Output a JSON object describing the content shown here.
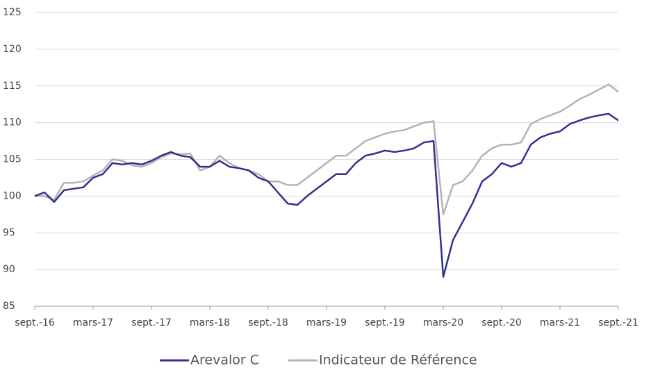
{
  "chart_data": {
    "type": "line",
    "categories": [
      "sept.-16",
      null,
      null,
      null,
      null,
      null,
      "mars-17",
      null,
      null,
      null,
      null,
      null,
      "sept.-17",
      null,
      null,
      null,
      null,
      null,
      "mars-18",
      null,
      null,
      null,
      null,
      null,
      "sept.-18",
      null,
      null,
      null,
      null,
      null,
      "mars-19",
      null,
      null,
      null,
      null,
      null,
      "sept.-19",
      null,
      null,
      null,
      null,
      null,
      "mars-20",
      null,
      null,
      null,
      null,
      null,
      "sept.-20",
      null,
      null,
      null,
      null,
      null,
      "mars-21",
      null,
      null,
      null,
      null,
      null,
      "sept.-21"
    ],
    "series": [
      {
        "name": "Arevalor C",
        "color": "#2e3192",
        "values": [
          100,
          100.5,
          99.2,
          100.8,
          101,
          101.2,
          102.5,
          103,
          104.5,
          104.3,
          104.5,
          104.3,
          104.8,
          105.5,
          106,
          105.5,
          105.3,
          104,
          104,
          104.8,
          104,
          103.8,
          103.5,
          102.5,
          102,
          100.5,
          99,
          98.8,
          100,
          101,
          102,
          103,
          103,
          104.5,
          105.5,
          105.8,
          106.2,
          106,
          106.2,
          106.5,
          107.3,
          107.5,
          89,
          94,
          96.5,
          99,
          102,
          103,
          104.5,
          104,
          104.5,
          107,
          108,
          108.5,
          108.8,
          109.8,
          110.3,
          110.7,
          111,
          111.2,
          110.3
        ]
      },
      {
        "name": "Indicateur de Référence",
        "color": "#b3b3b3",
        "values": [
          100,
          100,
          99.5,
          101.8,
          101.8,
          102,
          102.8,
          103.5,
          105,
          104.8,
          104.2,
          104,
          104.5,
          105.3,
          105.8,
          105.7,
          105.8,
          103.5,
          104,
          105.5,
          104.5,
          103.8,
          103.5,
          103,
          102,
          102,
          101.5,
          101.5,
          102.5,
          103.5,
          104.5,
          105.5,
          105.5,
          106.5,
          107.5,
          108,
          108.5,
          108.8,
          109,
          109.5,
          110,
          110.2,
          97.5,
          101.5,
          102,
          103.5,
          105.5,
          106.5,
          107,
          107,
          107.3,
          109.8,
          110.5,
          111,
          111.5,
          112.3,
          113.2,
          113.8,
          114.5,
          115.2,
          114.2
        ]
      }
    ],
    "ylim": [
      85,
      125
    ],
    "yticks": [
      85,
      90,
      95,
      100,
      105,
      110,
      115,
      120,
      125
    ],
    "grid": true,
    "legend": "bottom"
  }
}
